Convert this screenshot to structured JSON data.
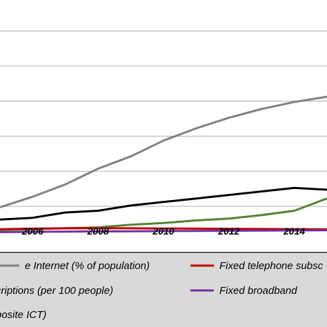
{
  "chart_data": {
    "type": "line",
    "title": "",
    "xlabel": "",
    "ylabel": "",
    "x": [
      2005,
      2006,
      2007,
      2008,
      2009,
      2010,
      2011,
      2012,
      2013,
      2014,
      2015
    ],
    "xticks": [
      "2006",
      "2008",
      "2010",
      "2012",
      "2014"
    ],
    "xticks_values": [
      2006,
      2008,
      2010,
      2012,
      2014
    ],
    "xlim": [
      2005,
      2015
    ],
    "ylim": [
      0,
      140
    ],
    "grid": true,
    "legend_position": "bottom",
    "series": [
      {
        "name": "e Internet (% of population)",
        "color": "#7f7f7f",
        "values": [
          14,
          20,
          27,
          36,
          43,
          52,
          59,
          65,
          70,
          74,
          77
        ]
      },
      {
        "name": "",
        "color": "#000000",
        "values": [
          7,
          8,
          11,
          12,
          15,
          17,
          19,
          21,
          23,
          25,
          24
        ]
      },
      {
        "name": "",
        "color": "#548235",
        "values": [
          1,
          1.5,
          2,
          2.5,
          4,
          5,
          6.5,
          7.5,
          9.5,
          12,
          19
        ]
      },
      {
        "name": "Fixed telephone subsc",
        "color": "#c00000",
        "values": [
          1.5,
          1.8,
          2,
          2,
          2,
          1.9,
          1.8,
          1.7,
          1.6,
          1.5,
          1.4
        ]
      },
      {
        "name": "Fixed broadband",
        "color": "#7030a0",
        "values": [
          -0.2,
          0,
          0.1,
          0.2,
          0.3,
          0.4,
          0.5,
          0.6,
          0.7,
          0.8,
          0.9
        ]
      }
    ],
    "legend": [
      {
        "label": "e Internet (% of population)",
        "color": "#7f7f7f",
        "col": 0,
        "row": 0
      },
      {
        "label": "Fixed telephone subsc",
        "color": "#c00000",
        "col": 1,
        "row": 0
      },
      {
        "label": "criptions (per 100 people)",
        "color": "",
        "col": 0,
        "row": 1
      },
      {
        "label": "Fixed broadband",
        "color": "#7030a0",
        "col": 1,
        "row": 1
      },
      {
        "label": "posite ICT)",
        "color": "",
        "col": 0,
        "row": 2
      }
    ]
  }
}
